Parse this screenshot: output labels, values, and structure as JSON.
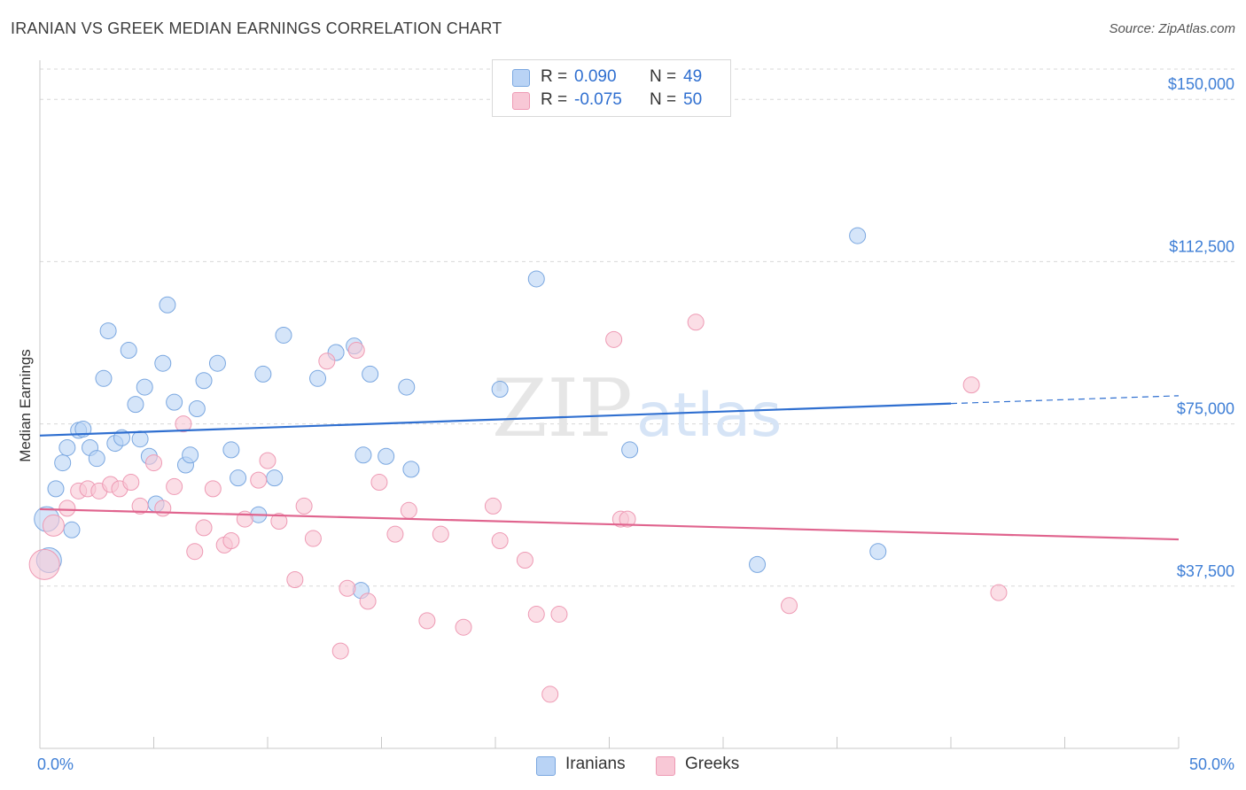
{
  "header": {
    "title": "IRANIAN VS GREEK MEDIAN EARNINGS CORRELATION CHART",
    "source": "Source: ZipAtlas.com"
  },
  "watermark": "ZIPatlas",
  "legend": {
    "series": [
      {
        "r_label": "R =",
        "r_value": "0.090",
        "n_label": "N =",
        "n_value": "49"
      },
      {
        "r_label": "R =",
        "r_value": "-0.075",
        "n_label": "N =",
        "n_value": "50"
      }
    ]
  },
  "bottom_legend": {
    "iranians": "Iranians",
    "greeks": "Greeks"
  },
  "colors": {
    "iranians_fill": "#b9d3f5",
    "iranians_stroke": "#7aa7e0",
    "iranians_line": "#2f6fd0",
    "greeks_fill": "#f8c8d6",
    "greeks_stroke": "#ee9ab4",
    "greeks_line": "#e0648e",
    "grid": "#d8d8d8",
    "tick_label": "#3f7fd6"
  },
  "chart_data": {
    "type": "scatter",
    "title": "IRANIAN VS GREEK MEDIAN EARNINGS CORRELATION CHART",
    "xlabel": "",
    "ylabel": "Median Earnings",
    "xlim": [
      0,
      50
    ],
    "ylim": [
      0,
      157000
    ],
    "x_tick_labels": [
      "0.0%",
      "50.0%"
    ],
    "y_ticks": [
      37500,
      75000,
      112500,
      150000
    ],
    "y_tick_labels": [
      "$37,500",
      "$75,000",
      "$112,500",
      "$150,000"
    ],
    "grid": true,
    "series": [
      {
        "name": "Iranians",
        "r": 0.09,
        "n": 49,
        "trend": {
          "x0": 0,
          "y0": 72300,
          "x1": 40,
          "y1": 79700,
          "dash_to_x": 50,
          "dash_y": 81500
        },
        "points": [
          [
            0.3,
            53000,
            14
          ],
          [
            0.4,
            43500,
            14
          ],
          [
            0.7,
            60000,
            9
          ],
          [
            1.0,
            66000,
            9
          ],
          [
            1.2,
            69500,
            9
          ],
          [
            1.4,
            50500,
            9
          ],
          [
            1.7,
            73500,
            9
          ],
          [
            1.9,
            73800,
            9
          ],
          [
            2.2,
            69500,
            9
          ],
          [
            2.5,
            67000,
            9
          ],
          [
            2.8,
            85500,
            9
          ],
          [
            3.0,
            96500,
            9
          ],
          [
            3.3,
            70500,
            9
          ],
          [
            3.6,
            71800,
            9
          ],
          [
            3.9,
            92000,
            9
          ],
          [
            4.2,
            79500,
            9
          ],
          [
            4.4,
            71500,
            9
          ],
          [
            4.6,
            83500,
            9
          ],
          [
            4.8,
            67500,
            9
          ],
          [
            5.1,
            56500,
            9
          ],
          [
            5.4,
            89000,
            9
          ],
          [
            5.6,
            102500,
            9
          ],
          [
            5.9,
            80000,
            9
          ],
          [
            6.4,
            65500,
            9
          ],
          [
            6.6,
            67800,
            9
          ],
          [
            6.9,
            78500,
            9
          ],
          [
            7.2,
            85000,
            9
          ],
          [
            7.8,
            89000,
            9
          ],
          [
            8.4,
            69000,
            9
          ],
          [
            8.7,
            62500,
            9
          ],
          [
            9.8,
            86500,
            9
          ],
          [
            10.3,
            62500,
            9
          ],
          [
            10.7,
            95500,
            9
          ],
          [
            9.6,
            54000,
            9
          ],
          [
            12.2,
            85500,
            9
          ],
          [
            13.0,
            91500,
            9
          ],
          [
            13.8,
            93000,
            9
          ],
          [
            14.1,
            36500,
            9
          ],
          [
            14.2,
            67800,
            9
          ],
          [
            14.5,
            86500,
            9
          ],
          [
            15.2,
            67500,
            9
          ],
          [
            16.1,
            83500,
            9
          ],
          [
            16.3,
            64500,
            9
          ],
          [
            20.2,
            83000,
            9
          ],
          [
            21.8,
            108500,
            9
          ],
          [
            25.9,
            69000,
            9
          ],
          [
            31.5,
            42500,
            9
          ],
          [
            35.9,
            118500,
            9
          ],
          [
            36.8,
            45500,
            9
          ]
        ]
      },
      {
        "name": "Greeks",
        "r": -0.075,
        "n": 50,
        "trend": {
          "x0": 0,
          "y0": 55300,
          "x1": 50,
          "y1": 48300
        },
        "points": [
          [
            0.2,
            42500,
            17
          ],
          [
            0.6,
            51500,
            12
          ],
          [
            1.2,
            55500,
            9
          ],
          [
            1.7,
            59500,
            9
          ],
          [
            2.1,
            60000,
            9
          ],
          [
            2.6,
            59500,
            9
          ],
          [
            3.1,
            61000,
            9
          ],
          [
            3.5,
            60000,
            9
          ],
          [
            4.0,
            61500,
            9
          ],
          [
            4.4,
            56000,
            9
          ],
          [
            5.0,
            66000,
            9
          ],
          [
            5.4,
            55500,
            9
          ],
          [
            5.9,
            60500,
            9
          ],
          [
            6.3,
            75000,
            9
          ],
          [
            6.8,
            45500,
            9
          ],
          [
            7.2,
            51000,
            9
          ],
          [
            7.6,
            60000,
            9
          ],
          [
            8.1,
            47000,
            9
          ],
          [
            8.4,
            48000,
            9
          ],
          [
            9.0,
            53000,
            9
          ],
          [
            9.6,
            62000,
            9
          ],
          [
            10.0,
            66500,
            9
          ],
          [
            10.5,
            52500,
            9
          ],
          [
            11.2,
            39000,
            9
          ],
          [
            11.6,
            56000,
            9
          ],
          [
            12.0,
            48500,
            9
          ],
          [
            12.6,
            89500,
            9
          ],
          [
            13.2,
            22500,
            9
          ],
          [
            13.5,
            37000,
            9
          ],
          [
            13.9,
            92000,
            9
          ],
          [
            14.4,
            34000,
            9
          ],
          [
            14.9,
            61500,
            9
          ],
          [
            15.6,
            49500,
            9
          ],
          [
            16.2,
            55000,
            9
          ],
          [
            17.0,
            29500,
            9
          ],
          [
            17.6,
            49500,
            9
          ],
          [
            18.6,
            28000,
            9
          ],
          [
            19.9,
            56000,
            9
          ],
          [
            20.2,
            48000,
            9
          ],
          [
            21.3,
            43500,
            9
          ],
          [
            21.8,
            31000,
            9
          ],
          [
            22.4,
            12500,
            9
          ],
          [
            22.8,
            31000,
            9
          ],
          [
            25.2,
            94500,
            9
          ],
          [
            25.5,
            53000,
            9
          ],
          [
            25.8,
            53000,
            9
          ],
          [
            28.8,
            98500,
            9
          ],
          [
            32.9,
            33000,
            9
          ],
          [
            40.9,
            84000,
            9
          ],
          [
            42.1,
            36000,
            9
          ]
        ]
      }
    ]
  }
}
